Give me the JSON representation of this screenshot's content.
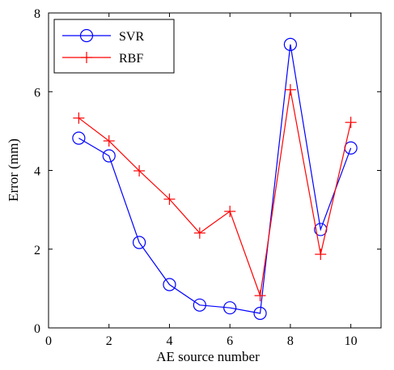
{
  "chart_data": {
    "type": "line",
    "title": "",
    "xlabel": "AE source number",
    "ylabel": "Error (mm)",
    "xlim": [
      0,
      11
    ],
    "ylim": [
      0,
      8
    ],
    "xticks": [
      0,
      2,
      4,
      6,
      8,
      10
    ],
    "yticks": [
      0,
      2,
      4,
      6,
      8
    ],
    "grid": false,
    "legend_position": "top-left",
    "x": [
      1,
      2,
      3,
      4,
      5,
      6,
      7,
      8,
      9,
      10
    ],
    "series": [
      {
        "name": "SVR",
        "color": "#0000ff",
        "marker": "circle",
        "values": [
          4.82,
          4.37,
          2.17,
          1.1,
          0.58,
          0.51,
          0.37,
          7.2,
          2.5,
          4.57
        ]
      },
      {
        "name": "RBF",
        "color": "#ff0000",
        "marker": "plus",
        "values": [
          5.33,
          4.75,
          3.99,
          3.27,
          2.41,
          2.96,
          0.82,
          6.05,
          1.87,
          5.22
        ]
      }
    ]
  }
}
